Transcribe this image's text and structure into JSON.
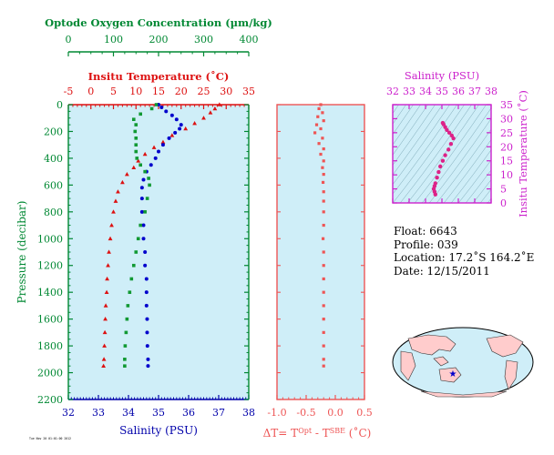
{
  "chart_data": [
    {
      "type": "scatter",
      "panel": "main-profile",
      "oxygen_axis": {
        "label": "Optode Oxygen Concentration (µm/kg)",
        "range": [
          0,
          400
        ],
        "ticks": [
          "0",
          "100",
          "200",
          "300",
          "400"
        ],
        "color": "#008833"
      },
      "temperature_axis": {
        "label": "Insitu Temperature (˚C)",
        "range": [
          -5,
          35
        ],
        "ticks": [
          "-5",
          "0",
          "5",
          "10",
          "15",
          "20",
          "25",
          "30",
          "35"
        ],
        "color": "#dd1111"
      },
      "salinity_axis": {
        "label": "Salinity (PSU)",
        "range": [
          32,
          38
        ],
        "ticks": [
          "32",
          "33",
          "34",
          "35",
          "36",
          "37",
          "38"
        ],
        "color": "#0000aa"
      },
      "pressure_axis": {
        "label": "Pressure (decibar)",
        "range": [
          0,
          2200
        ],
        "ticks": [
          "0",
          "200",
          "400",
          "600",
          "800",
          "1000",
          "1200",
          "1400",
          "1600",
          "1800",
          "2000",
          "2200"
        ],
        "color": "#008833"
      },
      "grid": false,
      "series": [
        {
          "name": "Insitu Temperature",
          "marker": "triangle",
          "color": "#dd1111",
          "points": [
            [
              28.5,
              0
            ],
            [
              27.5,
              30
            ],
            [
              26.5,
              60
            ],
            [
              25,
              100
            ],
            [
              23,
              140
            ],
            [
              21,
              180
            ],
            [
              18,
              230
            ],
            [
              16,
              280
            ],
            [
              14,
              320
            ],
            [
              12,
              370
            ],
            [
              10.5,
              420
            ],
            [
              9.5,
              470
            ],
            [
              8,
              520
            ],
            [
              7,
              580
            ],
            [
              6,
              650
            ],
            [
              5.5,
              720
            ],
            [
              5,
              800
            ],
            [
              4.6,
              900
            ],
            [
              4.3,
              1000
            ],
            [
              4,
              1100
            ],
            [
              3.8,
              1200
            ],
            [
              3.6,
              1300
            ],
            [
              3.5,
              1400
            ],
            [
              3.3,
              1500
            ],
            [
              3.2,
              1600
            ],
            [
              3.1,
              1700
            ],
            [
              3,
              1800
            ],
            [
              2.9,
              1900
            ],
            [
              2.8,
              1950
            ]
          ]
        },
        {
          "name": "Salinity",
          "marker": "circle",
          "color": "#0000cc",
          "points": [
            [
              35.0,
              0
            ],
            [
              35.1,
              20
            ],
            [
              35.25,
              50
            ],
            [
              35.45,
              80
            ],
            [
              35.6,
              110
            ],
            [
              35.75,
              150
            ],
            [
              35.7,
              180
            ],
            [
              35.55,
              210
            ],
            [
              35.35,
              250
            ],
            [
              35.15,
              300
            ],
            [
              35,
              350
            ],
            [
              34.9,
              400
            ],
            [
              34.75,
              450
            ],
            [
              34.6,
              500
            ],
            [
              34.5,
              560
            ],
            [
              34.45,
              620
            ],
            [
              34.45,
              700
            ],
            [
              34.45,
              800
            ],
            [
              34.5,
              900
            ],
            [
              34.5,
              1000
            ],
            [
              34.55,
              1100
            ],
            [
              34.55,
              1200
            ],
            [
              34.6,
              1300
            ],
            [
              34.6,
              1400
            ],
            [
              34.6,
              1500
            ],
            [
              34.62,
              1600
            ],
            [
              34.62,
              1700
            ],
            [
              34.63,
              1800
            ],
            [
              34.65,
              1900
            ],
            [
              34.65,
              1950
            ]
          ]
        },
        {
          "name": "Optode Oxygen Concentration",
          "marker": "square",
          "color": "#119933",
          "points": [
            [
              195,
              0
            ],
            [
              185,
              30
            ],
            [
              160,
              70
            ],
            [
              145,
              110
            ],
            [
              150,
              150
            ],
            [
              148,
              200
            ],
            [
              150,
              250
            ],
            [
              150,
              300
            ],
            [
              150,
              350
            ],
            [
              152,
              400
            ],
            [
              160,
              450
            ],
            [
              170,
              500
            ],
            [
              178,
              550
            ],
            [
              180,
              600
            ],
            [
              175,
              700
            ],
            [
              170,
              800
            ],
            [
              160,
              900
            ],
            [
              155,
              1000
            ],
            [
              150,
              1100
            ],
            [
              145,
              1200
            ],
            [
              140,
              1300
            ],
            [
              136,
              1400
            ],
            [
              132,
              1500
            ],
            [
              130,
              1600
            ],
            [
              128,
              1700
            ],
            [
              126,
              1800
            ],
            [
              125,
              1900
            ],
            [
              125,
              1950
            ]
          ]
        }
      ]
    },
    {
      "type": "scatter",
      "panel": "delta-t",
      "xlabel": "ΔT= T",
      "xlabel_sup1": "Opt",
      "xlabel_mid": " - T",
      "xlabel_sup2": "SBE",
      "xlabel_unit": " (˚C)",
      "xlim": [
        -1.0,
        0.5
      ],
      "ylim": [
        0,
        2200
      ],
      "xticks": [
        "-1.0",
        "-0.5",
        "0.0",
        "0.5"
      ],
      "color": "#ee5555",
      "points": [
        [
          -0.25,
          0
        ],
        [
          -0.28,
          30
        ],
        [
          -0.22,
          60
        ],
        [
          -0.3,
          90
        ],
        [
          -0.2,
          120
        ],
        [
          -0.32,
          150
        ],
        [
          -0.25,
          180
        ],
        [
          -0.35,
          210
        ],
        [
          -0.22,
          250
        ],
        [
          -0.28,
          290
        ],
        [
          -0.2,
          330
        ],
        [
          -0.25,
          370
        ],
        [
          -0.2,
          420
        ],
        [
          -0.22,
          470
        ],
        [
          -0.2,
          520
        ],
        [
          -0.21,
          580
        ],
        [
          -0.2,
          650
        ],
        [
          -0.2,
          720
        ],
        [
          -0.2,
          800
        ],
        [
          -0.2,
          900
        ],
        [
          -0.21,
          1000
        ],
        [
          -0.2,
          1100
        ],
        [
          -0.2,
          1200
        ],
        [
          -0.2,
          1300
        ],
        [
          -0.2,
          1400
        ],
        [
          -0.2,
          1500
        ],
        [
          -0.2,
          1600
        ],
        [
          -0.2,
          1700
        ],
        [
          -0.2,
          1800
        ],
        [
          -0.2,
          1900
        ],
        [
          -0.2,
          1950
        ]
      ]
    },
    {
      "type": "scatter",
      "panel": "t-s-diagram",
      "xlabel": "Salinity (PSU)",
      "ylabel": "Insitu Temperature (˚C)",
      "xlim": [
        32,
        38
      ],
      "ylim": [
        0,
        35
      ],
      "xticks": [
        "32",
        "33",
        "34",
        "35",
        "36",
        "37",
        "38"
      ],
      "yticks": [
        "0",
        "5",
        "10",
        "15",
        "20",
        "25",
        "30",
        "35"
      ],
      "color": "#dd2288",
      "points": [
        [
          34.6,
          3
        ],
        [
          34.55,
          4
        ],
        [
          34.5,
          5
        ],
        [
          34.55,
          6
        ],
        [
          34.6,
          7
        ],
        [
          34.7,
          9
        ],
        [
          34.8,
          11
        ],
        [
          34.9,
          13
        ],
        [
          35.05,
          15
        ],
        [
          35.2,
          17
        ],
        [
          35.4,
          19
        ],
        [
          35.55,
          21
        ],
        [
          35.7,
          23
        ],
        [
          35.6,
          24
        ],
        [
          35.45,
          25
        ],
        [
          35.3,
          26
        ],
        [
          35.2,
          27
        ],
        [
          35.1,
          28
        ],
        [
          35.05,
          28.5
        ]
      ]
    }
  ],
  "float_info": {
    "float": "Float:  6643",
    "profile": "Profile:  039",
    "location": "Location:  17.2˚S  164.2˚E",
    "date": "Date:  12/15/2011"
  },
  "map": {
    "marker_color": "#0000cc",
    "land_color": "#ffcccc",
    "ocean_color": "#cfeef8"
  },
  "footer": {
    "stamp": "Tue Nov 20 01:01:00 2012"
  }
}
